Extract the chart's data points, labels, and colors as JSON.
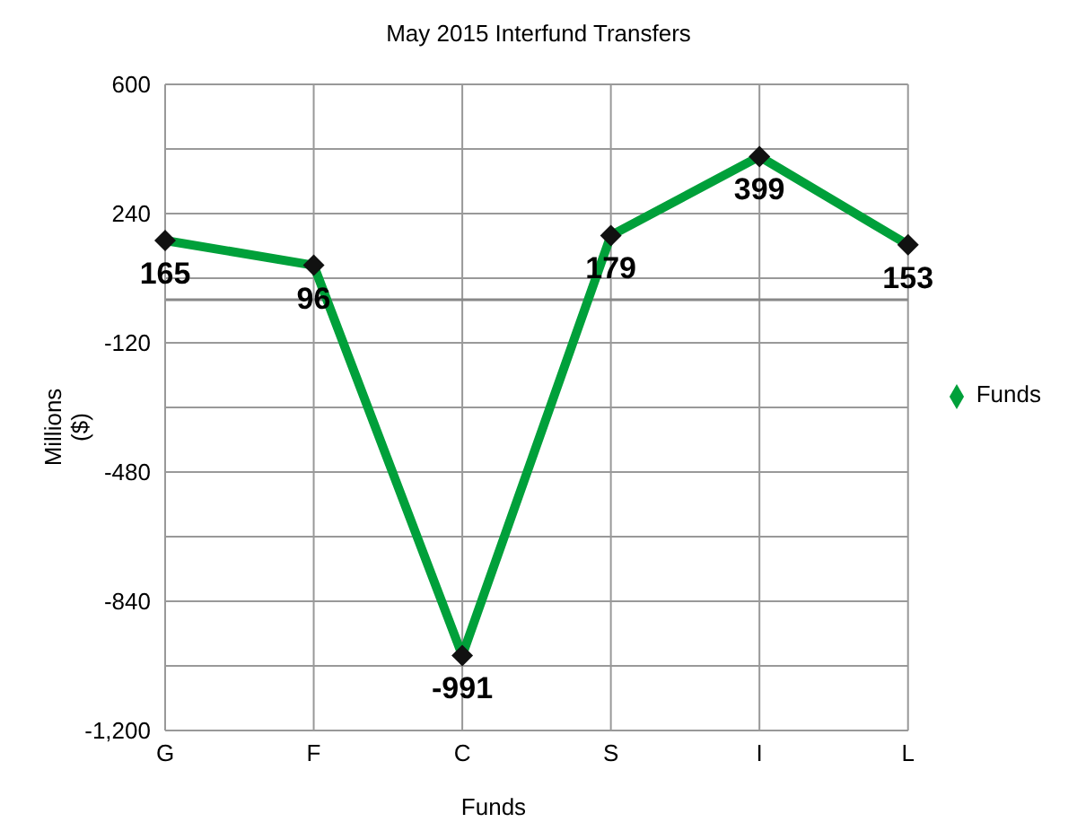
{
  "chart_data": {
    "type": "line",
    "title": "May 2015 Interfund Transfers",
    "xlabel": "Funds",
    "ylabel": "Millions\n($)",
    "categories": [
      "G",
      "F",
      "C",
      "S",
      "I",
      "L"
    ],
    "series": [
      {
        "name": "Funds",
        "color": "#00a03a",
        "values": [
          165,
          96,
          -991,
          179,
          399,
          153
        ]
      }
    ],
    "ylim": [
      -1200,
      600
    ],
    "yticks": [
      {
        "value": -1200,
        "label": "-1,200"
      },
      -840,
      -480,
      -120,
      240,
      600
    ],
    "ref_lines": [
      {
        "axis": "y",
        "value": 0,
        "color": "#888888"
      }
    ],
    "grid": true,
    "legend": "right",
    "marker": "diamond",
    "line_style": "solid",
    "data_labels": true
  }
}
